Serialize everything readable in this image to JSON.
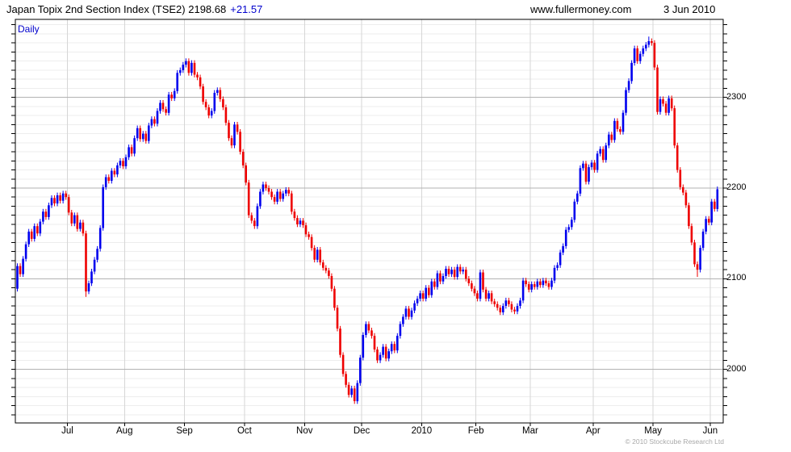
{
  "header": {
    "title": "Japan Topix 2nd Section Index (TSE2) 2198.68",
    "change": "+21.57",
    "website": "www.fullermoney.com",
    "date": "3 Jun 2010"
  },
  "chart": {
    "frequency_label": "Daily",
    "copyright": "© 2010 Stockcube Research Ltd"
  },
  "colors": {
    "up": "#0000ee",
    "down": "#ee0000",
    "grid_minor": "#ededed",
    "grid_major": "#b3b3b3",
    "grid_month": "#d6d6d6",
    "axis": "#000000",
    "accent_blue": "#0000cc",
    "copyright_gray": "#a9a9a9"
  },
  "chart_data": {
    "type": "candlestick",
    "title": "Japan Topix 2nd Section Index (TSE2)",
    "last_close": 2198.68,
    "last_change": 21.57,
    "frequency": "Daily",
    "ylim": [
      1941,
      2386
    ],
    "y_major_ticks": [
      2300,
      2200,
      2100,
      2000
    ],
    "y_minor_step": 10,
    "y_axis_side": "right",
    "x_labels": [
      "Jul",
      "Aug",
      "Sep",
      "Oct",
      "Nov",
      "Dec",
      "2010",
      "Feb",
      "Mar",
      "Apr",
      "May",
      "Jun"
    ],
    "month_start_indices": [
      18,
      38,
      59,
      80,
      101,
      121,
      142,
      161,
      180,
      202,
      223,
      243
    ],
    "open_rule": "previous_close",
    "first_open": 2089,
    "default_wick": 3,
    "special_wicks": [
      {
        "index": 24,
        "low": 2080
      },
      {
        "index": 221,
        "high": 2367
      },
      {
        "index": 238,
        "low": 2102
      }
    ],
    "closes": [
      2114,
      2105,
      2122,
      2138,
      2152,
      2144,
      2158,
      2150,
      2163,
      2174,
      2168,
      2181,
      2189,
      2183,
      2192,
      2186,
      2194,
      2190,
      2173,
      2161,
      2170,
      2155,
      2162,
      2150,
      2086,
      2095,
      2108,
      2121,
      2133,
      2156,
      2201,
      2212,
      2208,
      2219,
      2215,
      2225,
      2230,
      2224,
      2234,
      2245,
      2238,
      2255,
      2266,
      2254,
      2260,
      2252,
      2269,
      2276,
      2271,
      2285,
      2294,
      2287,
      2283,
      2303,
      2299,
      2307,
      2327,
      2330,
      2336,
      2340,
      2327,
      2338,
      2325,
      2322,
      2312,
      2295,
      2289,
      2280,
      2285,
      2305,
      2308,
      2298,
      2289,
      2272,
      2255,
      2247,
      2270,
      2262,
      2240,
      2225,
      2206,
      2170,
      2164,
      2158,
      2180,
      2196,
      2204,
      2200,
      2196,
      2190,
      2185,
      2196,
      2188,
      2194,
      2198,
      2194,
      2174,
      2167,
      2160,
      2164,
      2159,
      2149,
      2146,
      2134,
      2121,
      2132,
      2118,
      2112,
      2109,
      2103,
      2089,
      2068,
      2045,
      2016,
      1995,
      1983,
      1972,
      1979,
      1965,
      1985,
      2013,
      2038,
      2050,
      2043,
      2037,
      2022,
      2010,
      2016,
      2025,
      2012,
      2020,
      2028,
      2021,
      2037,
      2050,
      2058,
      2067,
      2058,
      2065,
      2073,
      2078,
      2084,
      2078,
      2090,
      2082,
      2097,
      2091,
      2106,
      2097,
      2103,
      2111,
      2105,
      2110,
      2102,
      2113,
      2108,
      2110,
      2100,
      2095,
      2089,
      2084,
      2078,
      2107,
      2088,
      2078,
      2084,
      2075,
      2072,
      2068,
      2063,
      2070,
      2076,
      2072,
      2066,
      2064,
      2070,
      2076,
      2098,
      2094,
      2088,
      2094,
      2091,
      2097,
      2093,
      2098,
      2095,
      2091,
      2098,
      2112,
      2115,
      2129,
      2136,
      2154,
      2157,
      2165,
      2185,
      2194,
      2222,
      2227,
      2207,
      2223,
      2228,
      2220,
      2238,
      2243,
      2231,
      2247,
      2259,
      2253,
      2274,
      2265,
      2262,
      2283,
      2308,
      2318,
      2338,
      2354,
      2340,
      2348,
      2354,
      2358,
      2362,
      2360,
      2333,
      2284,
      2298,
      2293,
      2283,
      2299,
      2288,
      2247,
      2220,
      2201,
      2195,
      2181,
      2158,
      2140,
      2116,
      2110,
      2134,
      2152,
      2166,
      2162,
      2185,
      2177,
      2198.68
    ]
  }
}
